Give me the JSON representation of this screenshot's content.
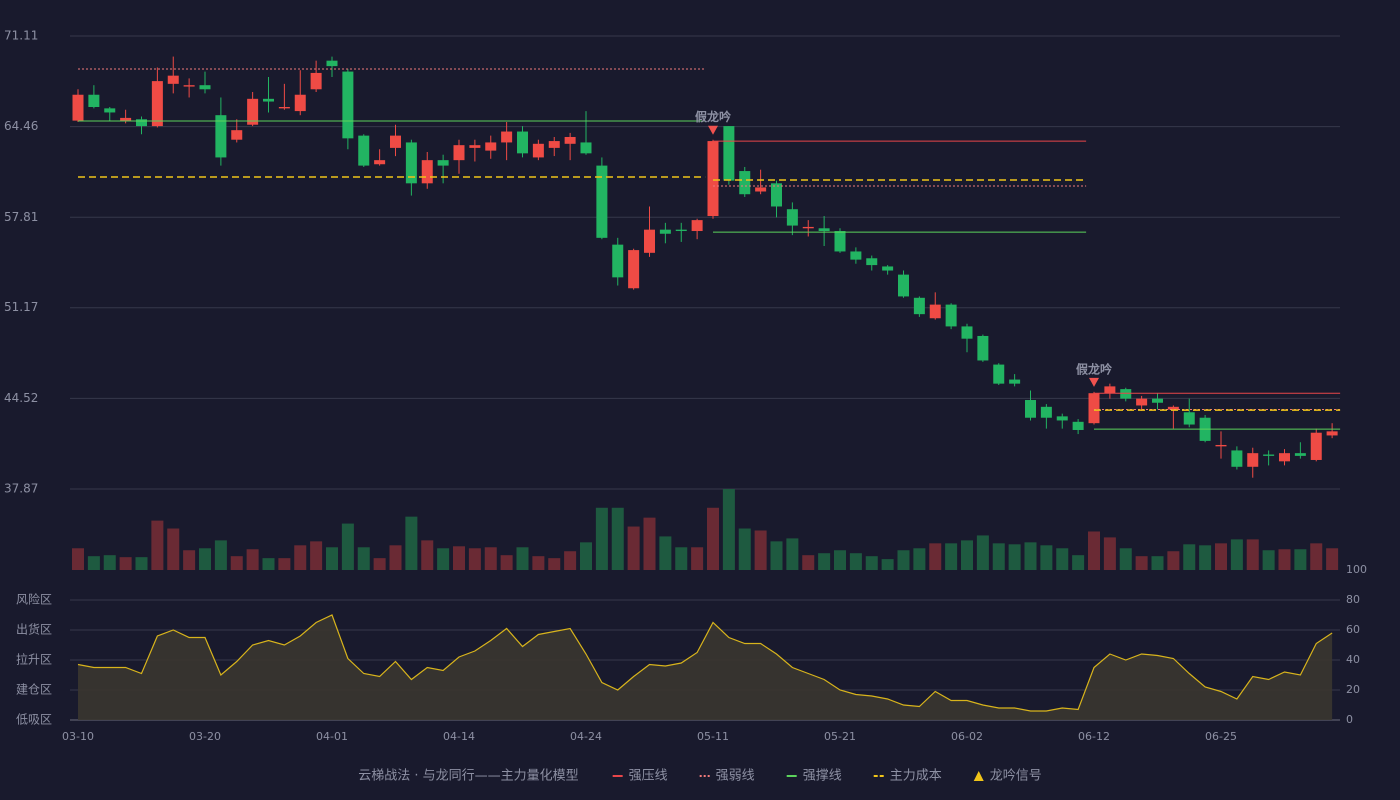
{
  "legend_title": "云梯战法 · 与龙同行——主力量化模型",
  "chart_data": [
    {
      "type": "candlestick",
      "categories": [
        "03-10",
        null,
        null,
        null,
        null,
        null,
        null,
        null,
        "03-20",
        null,
        null,
        null,
        null,
        null,
        null,
        null,
        "04-01",
        null,
        null,
        null,
        null,
        null,
        null,
        null,
        "04-14",
        null,
        null,
        null,
        null,
        null,
        null,
        null,
        "04-24",
        null,
        null,
        null,
        null,
        null,
        null,
        null,
        "05-11",
        null,
        null,
        null,
        null,
        null,
        null,
        null,
        "05-21",
        null,
        null,
        null,
        null,
        null,
        null,
        null,
        "06-02",
        null,
        null,
        null,
        null,
        null,
        null,
        null,
        "06-12",
        null,
        null,
        null,
        null,
        null,
        null,
        null,
        "06-25",
        null,
        null,
        null,
        null,
        null,
        null,
        null
      ],
      "open": [
        64.9,
        66.8,
        65.8,
        64.9,
        65.0,
        64.5,
        67.6,
        67.4,
        67.5,
        65.3,
        63.5,
        64.6,
        66.5,
        65.8,
        65.6,
        67.2,
        69.3,
        68.5,
        63.8,
        61.7,
        62.9,
        63.3,
        60.3,
        62.0,
        62.0,
        62.9,
        62.7,
        63.3,
        64.1,
        62.2,
        62.9,
        63.2,
        63.3,
        61.6,
        55.8,
        52.6,
        55.2,
        56.9,
        56.9,
        56.8,
        57.9,
        64.5,
        61.2,
        59.7,
        60.3,
        58.4,
        57.0,
        57.0,
        56.8,
        55.3,
        54.8,
        54.2,
        53.6,
        51.9,
        50.4,
        51.4,
        49.8,
        49.1,
        47.0,
        45.9,
        44.4,
        43.9,
        43.2,
        42.8,
        42.7,
        44.9,
        45.2,
        44.0,
        44.5,
        43.7,
        43.5,
        43.1,
        41.0,
        40.7,
        39.5,
        40.4,
        39.9,
        40.5,
        40.0,
        41.8
      ],
      "high": [
        67.2,
        67.5,
        65.9,
        65.7,
        65.2,
        68.8,
        69.6,
        68.0,
        68.5,
        66.6,
        65.0,
        67.0,
        68.1,
        67.6,
        68.6,
        69.3,
        69.6,
        68.7,
        63.9,
        62.8,
        64.6,
        63.5,
        62.6,
        62.4,
        63.5,
        63.5,
        63.8,
        64.8,
        64.5,
        63.5,
        63.7,
        64.0,
        65.6,
        62.2,
        56.3,
        55.5,
        58.6,
        57.4,
        57.4,
        57.7,
        63.5,
        64.5,
        61.5,
        61.3,
        60.5,
        58.9,
        57.6,
        57.9,
        57.0,
        55.6,
        55.0,
        54.3,
        53.9,
        52.0,
        52.3,
        51.5,
        50.0,
        49.2,
        47.1,
        46.3,
        45.1,
        44.1,
        43.4,
        43.0,
        45.0,
        45.6,
        45.3,
        44.7,
        44.9,
        44.0,
        44.5,
        43.3,
        42.1,
        41.0,
        40.9,
        40.7,
        40.8,
        41.3,
        42.3,
        42.7
      ],
      "low": [
        64.8,
        65.8,
        64.9,
        64.7,
        63.9,
        64.4,
        66.9,
        66.6,
        66.9,
        61.6,
        63.3,
        64.5,
        65.5,
        65.7,
        65.3,
        67.0,
        68.1,
        62.8,
        61.5,
        61.6,
        62.3,
        59.4,
        59.9,
        60.3,
        61.0,
        61.9,
        62.1,
        62.0,
        62.2,
        62.0,
        62.3,
        62.0,
        62.4,
        56.2,
        52.8,
        52.5,
        54.9,
        55.9,
        56.0,
        56.2,
        57.7,
        60.2,
        59.3,
        59.5,
        57.8,
        56.5,
        56.4,
        55.7,
        55.2,
        54.4,
        53.9,
        53.6,
        51.9,
        50.5,
        50.3,
        49.6,
        47.9,
        47.2,
        45.5,
        45.4,
        42.9,
        42.3,
        42.3,
        41.9,
        42.6,
        44.5,
        44.3,
        43.6,
        43.7,
        42.3,
        42.4,
        41.3,
        40.1,
        39.3,
        38.7,
        39.6,
        39.6,
        40.1,
        39.9,
        41.6
      ],
      "close": [
        66.8,
        65.9,
        65.5,
        65.1,
        64.5,
        67.8,
        68.2,
        67.5,
        67.2,
        62.2,
        64.2,
        66.5,
        66.3,
        65.9,
        66.8,
        68.4,
        68.9,
        63.6,
        61.6,
        62.0,
        63.8,
        60.3,
        62.0,
        61.6,
        63.1,
        63.1,
        63.3,
        64.1,
        62.5,
        63.2,
        63.4,
        63.7,
        62.5,
        56.3,
        53.4,
        55.4,
        56.9,
        56.6,
        56.8,
        57.6,
        63.4,
        60.5,
        59.5,
        60.0,
        58.6,
        57.2,
        57.1,
        56.8,
        55.3,
        54.7,
        54.3,
        53.9,
        52.0,
        50.7,
        51.4,
        49.8,
        48.9,
        47.3,
        45.6,
        45.6,
        43.1,
        43.1,
        42.9,
        42.2,
        44.9,
        45.4,
        44.5,
        44.5,
        44.2,
        43.9,
        42.6,
        41.4,
        41.1,
        39.5,
        40.5,
        40.3,
        40.5,
        40.3,
        42.0,
        42.1
      ],
      "up_color": "#ef4b45",
      "down_color": "#22b462",
      "ylim": [
        37.87,
        71.11
      ],
      "yticks": [
        37.87,
        44.52,
        51.17,
        57.81,
        64.46,
        71.11
      ],
      "grid": true,
      "series": [
        {
          "name": "强压线",
          "color": "#e8464a",
          "style": "solid",
          "segments": [
            {
              "from": 40,
              "to": 63,
              "value": 63.4
            },
            {
              "from": 64,
              "to": 79,
              "value": 44.9
            }
          ]
        },
        {
          "name": "强弱线",
          "color": "#f07a7a",
          "style": "dotted",
          "segments": [
            {
              "from": 0,
              "to": 39,
              "value": 68.69
            },
            {
              "from": 40,
              "to": 63,
              "value": 60.1
            },
            {
              "from": 64,
              "to": 79,
              "value": 43.7
            }
          ]
        },
        {
          "name": "强撑线",
          "color": "#5cd35c",
          "style": "solid",
          "segments": [
            {
              "from": 0,
              "to": 39,
              "value": 64.87
            },
            {
              "from": 40,
              "to": 63,
              "value": 56.72
            },
            {
              "from": 64,
              "to": 79,
              "value": 42.26
            }
          ]
        },
        {
          "name": "主力成本",
          "color": "#f0c419",
          "style": "dashed",
          "segments": [
            {
              "from": 0,
              "to": 39,
              "value": 60.76
            },
            {
              "from": 40,
              "to": 63,
              "value": 60.54
            },
            {
              "from": 64,
              "to": 79,
              "value": 43.66
            }
          ]
        }
      ],
      "signals": {
        "name": "龙吟信号",
        "color": "#f0524f",
        "legend_color": "#f0c419",
        "annotations": [
          {
            "text": "假龙吟",
            "index": 40
          },
          {
            "text": "假龙吟",
            "index": 64
          }
        ]
      }
    },
    {
      "type": "bar",
      "values": [
        22,
        14,
        15,
        13,
        13,
        50,
        42,
        20,
        22,
        30,
        14,
        21,
        12,
        12,
        25,
        29,
        23,
        47,
        23,
        12,
        25,
        54,
        30,
        22,
        24,
        22,
        23,
        15,
        23,
        14,
        12,
        19,
        28,
        63,
        63,
        44,
        53,
        34,
        23,
        23,
        63,
        82,
        42,
        40,
        29,
        32,
        15,
        17,
        20,
        17,
        14,
        11,
        20,
        22,
        27,
        27,
        30,
        35,
        27,
        26,
        28,
        25,
        22,
        15,
        39,
        33,
        22,
        14,
        14,
        19,
        26,
        25,
        27,
        31,
        31,
        20,
        21,
        21,
        27,
        22
      ],
      "up_color": "#6a2a34",
      "down_color": "#1e5a40"
    },
    {
      "type": "area",
      "values": [
        37,
        35,
        35,
        35,
        31,
        56,
        60,
        55,
        55,
        30,
        39,
        50,
        53,
        50,
        56,
        65,
        70,
        41,
        31,
        29,
        39,
        27,
        35,
        33,
        42,
        46,
        53,
        61,
        49,
        57,
        59,
        61,
        44,
        25,
        20,
        29,
        37,
        36,
        38,
        45,
        65,
        55,
        51,
        51,
        44,
        35,
        31,
        27,
        20,
        17,
        16,
        14,
        10,
        9,
        19,
        13,
        13,
        10,
        8,
        8,
        6,
        6,
        8,
        7,
        35,
        44,
        40,
        44,
        43,
        41,
        31,
        22,
        19,
        14,
        29,
        27,
        32,
        30,
        51,
        58
      ],
      "color": "#d8b41c",
      "fill": "#3a3630",
      "ylim": [
        0,
        100
      ],
      "yticks": [
        0,
        20,
        40,
        60,
        80,
        100
      ],
      "ytick_colors": [
        "#ff4a4a",
        "#ff8a3a",
        "#4a9ef0",
        "#e040e0",
        "#e0a030",
        "#4cd964"
      ],
      "zones": [
        {
          "label": "低吸区",
          "value": 0,
          "color": "#ff4a6a"
        },
        {
          "label": "建仓区",
          "value": 20,
          "color": "#ff6a5a"
        },
        {
          "label": "拉升区",
          "value": 40,
          "color": "#4a9ef0"
        },
        {
          "label": "出货区",
          "value": 60,
          "color": "#e040e0"
        },
        {
          "label": "风险区",
          "value": 80,
          "color": "#e8a040"
        }
      ]
    }
  ]
}
